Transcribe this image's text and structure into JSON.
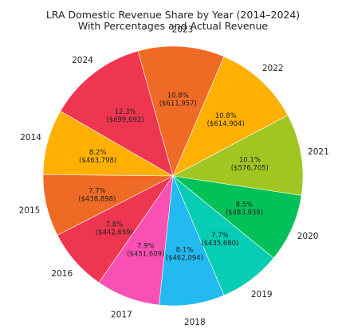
{
  "chart_data": {
    "type": "pie",
    "title": "LRA Domestic Revenue Share by Year (2014–2024)",
    "subtitle": "With Percentages and Actual Revenue",
    "slices": [
      {
        "label": "2014",
        "percent": "8.2%",
        "revenue": "($463,798)",
        "value": 463798,
        "color": "#FFB000"
      },
      {
        "label": "2015",
        "percent": "7.7%",
        "revenue": "($438,898)",
        "value": 438898,
        "color": "#EF6A24"
      },
      {
        "label": "2016",
        "percent": "7.8%",
        "revenue": "($442,659)",
        "value": 442659,
        "color": "#EE3650"
      },
      {
        "label": "2017",
        "percent": "7.9%",
        "revenue": "($451,609)",
        "value": 451609,
        "color": "#FA50B4"
      },
      {
        "label": "2018",
        "percent": "8.1%",
        "revenue": "($462,094)",
        "value": 462094,
        "color": "#22BAF0"
      },
      {
        "label": "2019",
        "percent": "7.7%",
        "revenue": "($435,680)",
        "value": 435680,
        "color": "#06CDB4"
      },
      {
        "label": "2020",
        "percent": "8.5%",
        "revenue": "($483,939)",
        "value": 483939,
        "color": "#02C158"
      },
      {
        "label": "2021",
        "percent": "10.1%",
        "revenue": "($576,705)",
        "value": 576705,
        "color": "#A2C621"
      },
      {
        "label": "2022",
        "percent": "10.8%",
        "revenue": "($614,904)",
        "value": 614904,
        "color": "#FFB000"
      },
      {
        "label": "2023",
        "percent": "10.8%",
        "revenue": "($611,957)",
        "value": 611957,
        "color": "#EF6A24"
      },
      {
        "label": "2024",
        "percent": "12.3%",
        "revenue": "($699,692)",
        "value": 699692,
        "color": "#EE3650"
      }
    ]
  }
}
